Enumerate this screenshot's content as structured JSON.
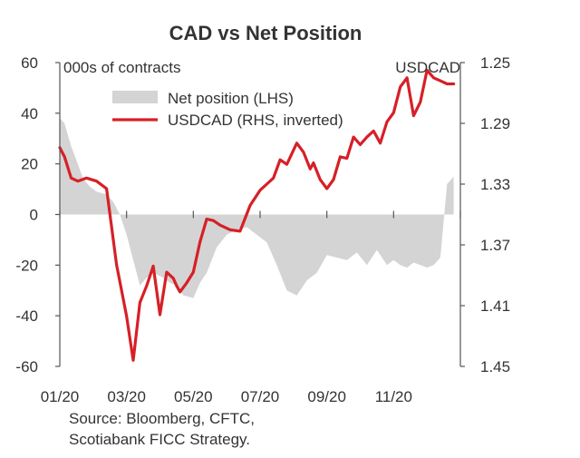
{
  "chart_data": {
    "type": "line",
    "title": "CAD vs Net Position",
    "left_unit_label": "000s of contracts",
    "right_unit_label": "USDCAD",
    "x_tick_labels": [
      "01/20",
      "03/20",
      "05/20",
      "07/20",
      "09/20",
      "11/20"
    ],
    "y_left": {
      "ticks": [
        60,
        40,
        20,
        0,
        -20,
        -40,
        -60
      ],
      "range": [
        -60,
        60
      ]
    },
    "y_right": {
      "ticks": [
        1.25,
        1.29,
        1.33,
        1.37,
        1.41,
        1.45
      ],
      "range": [
        1.25,
        1.45
      ],
      "inverted": true
    },
    "grid": false,
    "legend_placement": "top-center",
    "series": [
      {
        "name": "Net position (LHS)",
        "kind": "area",
        "axis": "left",
        "color": "#d4d4d4",
        "x": [
          0.0,
          0.07,
          0.17,
          0.27,
          0.35,
          0.45,
          0.55,
          0.7,
          0.8,
          0.9,
          1.0,
          1.1,
          1.2,
          1.3,
          1.4,
          1.55,
          1.65,
          1.75,
          1.85,
          2.0,
          2.1,
          2.2,
          2.35,
          2.5,
          2.65,
          2.8,
          2.95,
          3.1,
          3.25,
          3.4,
          3.55,
          3.7,
          3.85,
          4.0,
          4.15,
          4.3,
          4.45,
          4.6,
          4.75,
          4.9,
          5.0,
          5.1,
          5.2,
          5.3,
          5.4,
          5.5,
          5.6,
          5.7,
          5.8,
          5.9
        ],
        "values": [
          38,
          36,
          27,
          20,
          14,
          11,
          9,
          8,
          5,
          0,
          -8,
          -18,
          -28,
          -25,
          -23,
          -25,
          -27,
          -28,
          -32,
          -33,
          -27,
          -23,
          -13,
          -8,
          -6,
          -5,
          -8,
          -11,
          -20,
          -30,
          -32,
          -26,
          -23,
          -16,
          -17,
          -18,
          -15,
          -20,
          -14,
          -20,
          -18,
          -20,
          -21,
          -19,
          -20,
          -21,
          -20,
          -17,
          12,
          15
        ]
      },
      {
        "name": "USDCAD (RHS, inverted)",
        "kind": "line",
        "axis": "right",
        "color": "#d62027",
        "x": [
          0.0,
          0.07,
          0.17,
          0.27,
          0.4,
          0.55,
          0.7,
          0.85,
          1.0,
          1.1,
          1.2,
          1.3,
          1.4,
          1.5,
          1.6,
          1.7,
          1.75,
          1.8,
          1.9,
          2.0,
          2.1,
          2.2,
          2.3,
          2.4,
          2.55,
          2.7,
          2.85,
          3.0,
          3.1,
          3.2,
          3.3,
          3.4,
          3.55,
          3.65,
          3.75,
          3.8,
          3.9,
          4.0,
          4.1,
          4.2,
          4.3,
          4.4,
          4.5,
          4.6,
          4.7,
          4.8,
          4.9,
          5.0,
          5.1,
          5.2,
          5.3,
          5.4,
          5.5,
          5.6,
          5.7,
          5.8,
          5.9
        ],
        "values": [
          1.306,
          1.312,
          1.326,
          1.328,
          1.326,
          1.328,
          1.333,
          1.383,
          1.417,
          1.446,
          1.408,
          1.397,
          1.384,
          1.416,
          1.388,
          1.392,
          1.397,
          1.401,
          1.395,
          1.388,
          1.368,
          1.353,
          1.354,
          1.357,
          1.36,
          1.361,
          1.344,
          1.334,
          1.33,
          1.326,
          1.314,
          1.317,
          1.303,
          1.309,
          1.32,
          1.316,
          1.327,
          1.333,
          1.327,
          1.312,
          1.313,
          1.299,
          1.304,
          1.299,
          1.295,
          1.303,
          1.289,
          1.283,
          1.266,
          1.26,
          1.285,
          1.276,
          1.255,
          1.26,
          1.262,
          1.264,
          1.264
        ]
      }
    ],
    "source": [
      "Source: Bloomberg, CFTC,",
      "Scotiabank FICC  Strategy."
    ]
  }
}
